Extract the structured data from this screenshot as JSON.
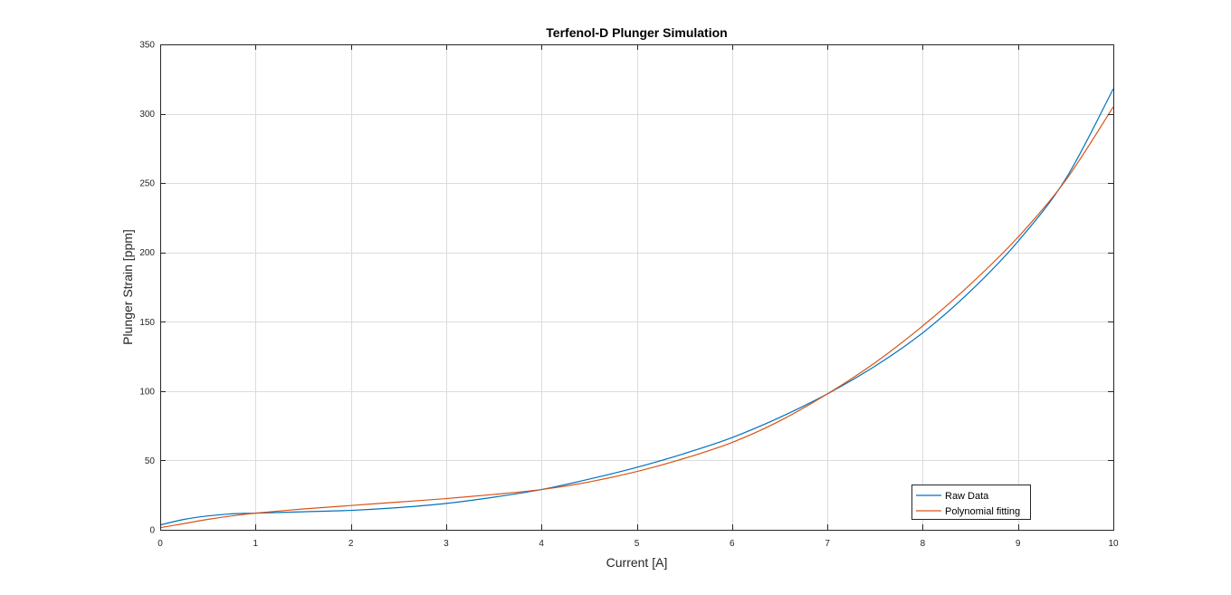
{
  "chart_data": {
    "type": "line",
    "title": "Terfenol-D Plunger Simulation",
    "xlabel": "Current [A]",
    "ylabel": "Plunger Strain [ppm]",
    "xlim": [
      0,
      10
    ],
    "ylim": [
      0,
      350
    ],
    "xticks": [
      0,
      1,
      2,
      3,
      4,
      5,
      6,
      7,
      8,
      9,
      10
    ],
    "yticks": [
      0,
      50,
      100,
      150,
      200,
      250,
      300,
      350
    ],
    "grid": true,
    "legend_position": "bottom-right",
    "series": [
      {
        "name": "Raw Data",
        "color": "#0072BD",
        "x": [
          0,
          0.25,
          0.5,
          0.75,
          1,
          1.5,
          2,
          2.5,
          3,
          3.5,
          4,
          4.5,
          5,
          5.5,
          6,
          6.5,
          7,
          7.5,
          8,
          8.5,
          9,
          9.5,
          10
        ],
        "y": [
          3.5,
          7.5,
          10,
          11.5,
          12,
          13,
          14,
          16,
          19,
          23.5,
          29,
          36.5,
          45,
          55,
          66.5,
          81,
          98,
          118,
          142,
          172,
          208,
          253,
          318
        ]
      },
      {
        "name": "Polynomial fitting",
        "color": "#D95319",
        "x": [
          0,
          0.25,
          0.5,
          0.75,
          1,
          1.5,
          2,
          2.5,
          3,
          3.5,
          4,
          4.5,
          5,
          5.5,
          6,
          6.5,
          7,
          7.5,
          8,
          8.5,
          9,
          9.5,
          10
        ],
        "y": [
          1.5,
          4.5,
          7.5,
          10,
          12,
          15,
          17.5,
          20,
          22.5,
          25.5,
          29,
          34.5,
          42,
          51.5,
          63,
          78.5,
          98,
          120.5,
          147,
          177,
          211,
          252,
          305
        ]
      }
    ]
  }
}
